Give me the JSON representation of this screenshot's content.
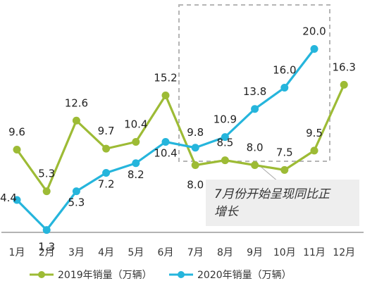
{
  "chart_data": {
    "type": "line",
    "categories": [
      "1月",
      "2月",
      "3月",
      "4月",
      "5月",
      "6月",
      "7月",
      "8月",
      "9月",
      "10月",
      "11月",
      "12月"
    ],
    "series": [
      {
        "name": "2019年销量（万辆）",
        "color": "#9dbb35",
        "values": [
          9.6,
          5.3,
          12.6,
          9.7,
          10.4,
          15.2,
          8.0,
          8.5,
          8.0,
          7.5,
          9.5,
          16.3
        ]
      },
      {
        "name": "2020年销量（万辆）",
        "color": "#25b5dc",
        "values": [
          4.4,
          1.3,
          5.3,
          7.2,
          8.2,
          10.4,
          9.8,
          10.9,
          13.8,
          16.0,
          20.0,
          null
        ]
      }
    ],
    "ylim": [
      0,
      22
    ],
    "grid": false,
    "legend": "bottom",
    "highlight_box": {
      "from_category": "7月",
      "to_category": "11月",
      "style": "dashed"
    },
    "annotation": {
      "text": "7月份开始呈现同比正增长",
      "line1": "7月份开始呈现同比正",
      "line2": "增长"
    }
  }
}
